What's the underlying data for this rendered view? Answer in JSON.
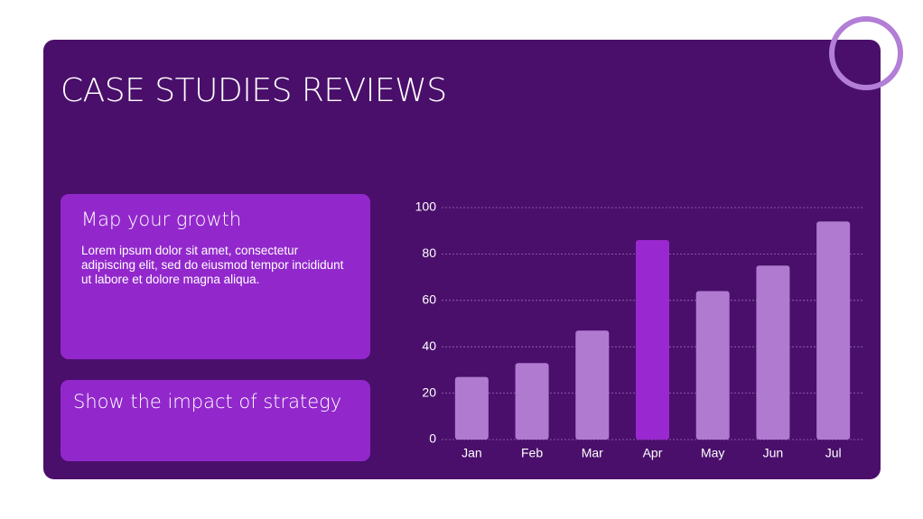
{
  "title": "CASE STUDIES REVIEWS",
  "cards": [
    {
      "heading": "Map your growth",
      "text": "Lorem ipsum dolor sit amet, consectetur adipiscing elit, sed do eiusmod tempor incididunt ut labore et dolore magna aliqua."
    },
    {
      "heading": "Show the impact of strategy"
    }
  ],
  "chart_data": {
    "type": "bar",
    "categories": [
      "Jan",
      "Feb",
      "Mar",
      "Apr",
      "May",
      "Jun",
      "Jul"
    ],
    "values": [
      27,
      33,
      47,
      86,
      64,
      75,
      94
    ],
    "colors": [
      "#b07ad0",
      "#b07ad0",
      "#b07ad0",
      "#9a28d0",
      "#b07ad0",
      "#b07ad0",
      "#b07ad0"
    ],
    "ylim": [
      0,
      100
    ],
    "yticks": [
      0,
      20,
      40,
      60,
      80,
      100
    ],
    "grid": true
  }
}
